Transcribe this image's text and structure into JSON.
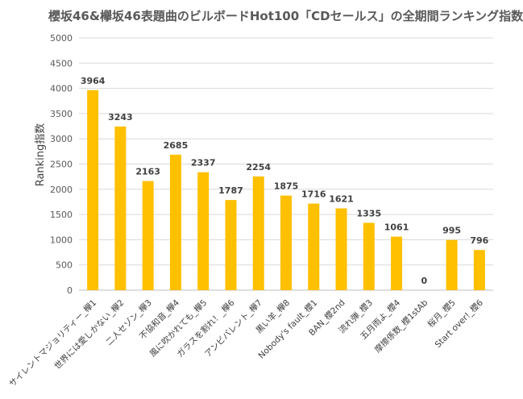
{
  "chart_data": {
    "type": "bar",
    "title": "櫻坂46&欅坂46表題曲のビルボードHot100「CDセールス」の全期間ランキング指数",
    "ylabel": "Ranking指数",
    "xlabel": "",
    "ylim": [
      0,
      5000
    ],
    "yticks": [
      0,
      500,
      1000,
      1500,
      2000,
      2500,
      3000,
      3500,
      4000,
      4500,
      5000
    ],
    "grid": true,
    "bar_color": "#FFC000",
    "categories": [
      "サイレントマジョリティー_欅1",
      "世界には愛しかない_欅2",
      "二人セゾン_欅3",
      "不協和音_欅4",
      "風に吹かれても_欅5",
      "ガラスを割れ！_欅6",
      "アンビバレント_欅7",
      "黒い羊_欅8",
      "Nobody's fault_櫻1",
      "BAN_櫻2nd",
      "流れ弾_櫻3",
      "五月雨よ_櫻4",
      "摩擦係数_櫻1stAb",
      "桜月_櫻5",
      "Start over!_櫻6"
    ],
    "values": [
      3964,
      3243,
      2163,
      2685,
      2337,
      1787,
      2254,
      1875,
      1716,
      1621,
      1335,
      1061,
      0,
      995,
      796
    ]
  }
}
